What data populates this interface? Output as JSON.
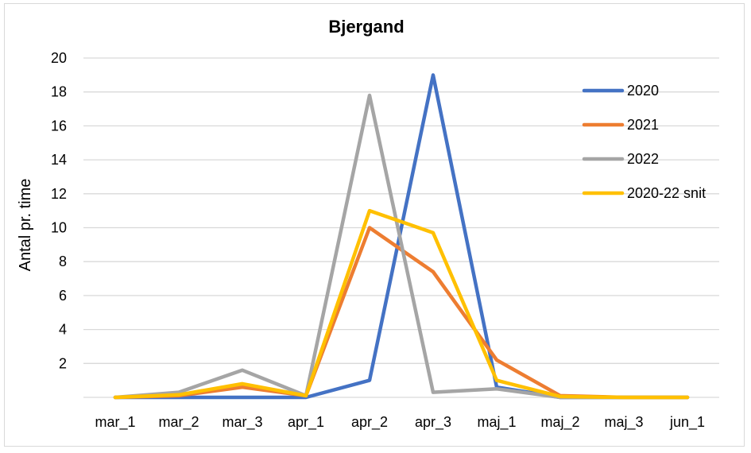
{
  "chart_data": {
    "type": "line",
    "title": "Bjergand",
    "ylabel": "Antal pr. time",
    "xlabel": "",
    "ylim": [
      0,
      20
    ],
    "yticks": [
      2,
      4,
      6,
      8,
      10,
      12,
      14,
      16,
      18,
      20
    ],
    "grid": true,
    "legend_position": "right",
    "categories": [
      "mar_1",
      "mar_2",
      "mar_3",
      "apr_1",
      "apr_2",
      "apr_3",
      "maj_1",
      "maj_2",
      "maj_3",
      "jun_1"
    ],
    "series": [
      {
        "name": "2020",
        "color": "#4472C4",
        "values": [
          0,
          0,
          0,
          0,
          1,
          19,
          0.6,
          0,
          0,
          0
        ]
      },
      {
        "name": "2021",
        "color": "#ED7D31",
        "values": [
          0,
          0.1,
          0.6,
          0.1,
          10,
          7.4,
          2.2,
          0.1,
          0,
          0
        ]
      },
      {
        "name": "2022",
        "color": "#A5A5A5",
        "values": [
          0,
          0.3,
          1.6,
          0.1,
          17.8,
          0.3,
          0.5,
          0,
          0,
          0
        ]
      },
      {
        "name": "2020-22 snit",
        "color": "#FFC000",
        "values": [
          0,
          0.15,
          0.8,
          0.1,
          11,
          9.7,
          1,
          0.05,
          0,
          0
        ]
      }
    ]
  }
}
